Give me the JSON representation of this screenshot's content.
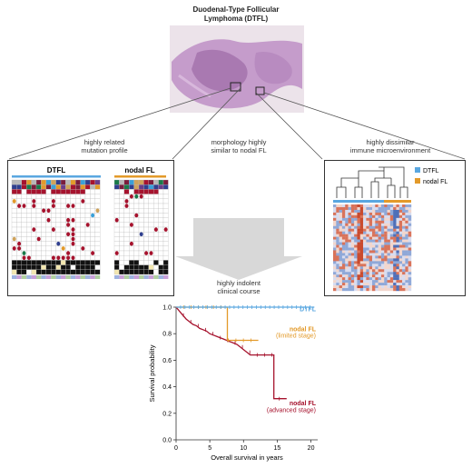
{
  "title_line1": "Duodenal-Type Follicular",
  "title_line2": "Lymphoma (DTFL)",
  "captions": {
    "mutation_line1": "highly related",
    "mutation_line2": "mutation profile",
    "morphology_line1": "morphology highly",
    "morphology_line2": "similar to nodal FL",
    "immune_line1": "highly dissimilar",
    "immune_line2": "immune microenvironment",
    "clinical_line1": "highly indolent",
    "clinical_line2": "clinical course"
  },
  "mutation_panel": {
    "group1_label": "DTFL",
    "group2_label": "nodal FL"
  },
  "heatmap_legend": [
    "DTFL",
    "nodal FL"
  ],
  "colors": {
    "dtfl": "#5aa7e0",
    "nodal": "#e39a2a",
    "advanced": "#a6122d",
    "histology": "#b483b8"
  },
  "chart_data": {
    "type": "line",
    "xlabel": "Overall survival in years",
    "ylabel": "Survival probability",
    "xlim": [
      0,
      21
    ],
    "ylim": [
      0,
      1.0
    ],
    "xticks": [
      "0",
      "5",
      "10",
      "15",
      "20"
    ],
    "yticks": [
      "0.0",
      "0.2",
      "0.4",
      "0.6",
      "0.8",
      "1.0"
    ],
    "series": [
      {
        "name": "DTFL",
        "color": "#5aa7e0",
        "points": [
          [
            0,
            1.0
          ],
          [
            20.5,
            1.0
          ]
        ]
      },
      {
        "name": "nodal FL",
        "sublabel": "(limited stage)",
        "color": "#e39a2a",
        "points": [
          [
            0,
            1.0
          ],
          [
            7.6,
            1.0
          ],
          [
            7.6,
            0.75
          ],
          [
            12.2,
            0.75
          ]
        ]
      },
      {
        "name": "nodal FL",
        "sublabel": "(advanced stage)",
        "color": "#a6122d",
        "points": [
          [
            0,
            1.0
          ],
          [
            0.5,
            0.97
          ],
          [
            1,
            0.94
          ],
          [
            1.5,
            0.91
          ],
          [
            2,
            0.89
          ],
          [
            2.5,
            0.87
          ],
          [
            3,
            0.86
          ],
          [
            3.5,
            0.84
          ],
          [
            4,
            0.83
          ],
          [
            4.5,
            0.82
          ],
          [
            5,
            0.8
          ],
          [
            5.5,
            0.79
          ],
          [
            6,
            0.78
          ],
          [
            6.5,
            0.77
          ],
          [
            7,
            0.76
          ],
          [
            7.5,
            0.75
          ],
          [
            8,
            0.74
          ],
          [
            8.5,
            0.73
          ],
          [
            9,
            0.72
          ],
          [
            9.5,
            0.7
          ],
          [
            10,
            0.68
          ],
          [
            10.5,
            0.66
          ],
          [
            11,
            0.64
          ],
          [
            14.5,
            0.64
          ],
          [
            14.5,
            0.31
          ],
          [
            16.4,
            0.31
          ]
        ]
      }
    ],
    "labels": [
      {
        "text": "DTFL",
        "series": 0
      },
      {
        "text": "nodal FL",
        "series": 1
      },
      {
        "text": "(limited stage)",
        "series": 1
      },
      {
        "text": "nodal FL",
        "series": 2
      },
      {
        "text": "(advanced stage)",
        "series": 2
      }
    ]
  }
}
